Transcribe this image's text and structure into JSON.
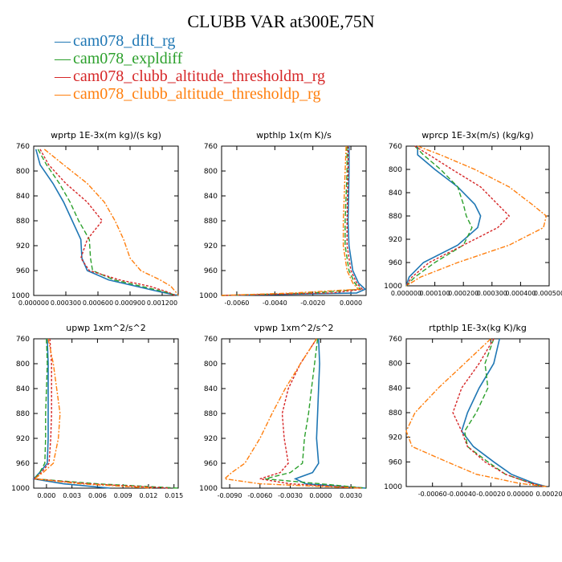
{
  "title": "CLUBB VAR at300E,75N",
  "legend": [
    {
      "name": "cam078_dflt_rg",
      "color": "#1f77b4"
    },
    {
      "name": "cam078_expldiff",
      "color": "#2ca02c"
    },
    {
      "name": "cam078_clubb_altitude_thresholdm_rg",
      "color": "#d62728"
    },
    {
      "name": "cam078_clubb_altitude_thresholdp_rg",
      "color": "#ff7f0e"
    }
  ],
  "chart_data": [
    {
      "type": "line",
      "title": "wprtp  1E-3x(m kg)/(s kg)",
      "xlim": [
        0.0,
        0.00135
      ],
      "ylim": [
        760,
        1000
      ],
      "yticks": [
        760,
        800,
        840,
        880,
        920,
        960,
        1000
      ],
      "xticks": [
        0.0,
        0.0003,
        0.0006,
        0.0009,
        0.0012
      ],
      "xtick_labels": [
        "0.000000",
        "0.000300",
        "0.000600",
        "0.000900",
        "0.001200"
      ],
      "pressure": [
        765,
        790,
        820,
        850,
        880,
        910,
        940,
        960,
        975,
        985,
        995,
        1000
      ],
      "series": [
        {
          "name": "cam078_dflt_rg",
          "values": [
            2e-05,
            6e-05,
            0.00018,
            0.00028,
            0.00036,
            0.00044,
            0.00045,
            0.0005,
            0.0007,
            0.00095,
            0.0012,
            0.00135
          ]
        },
        {
          "name": "cam078_expldiff",
          "values": [
            4e-05,
            0.00012,
            0.00024,
            0.00034,
            0.00042,
            0.00052,
            0.00053,
            0.00055,
            0.00075,
            0.001,
            0.00124,
            0.00133
          ]
        },
        {
          "name": "cam078_clubb_altitude_thresholdm_rg",
          "values": [
            6e-05,
            0.00014,
            0.0003,
            0.0005,
            0.00064,
            0.0005,
            0.00044,
            0.00052,
            0.0008,
            0.00108,
            0.00126,
            0.00132
          ]
        },
        {
          "name": "cam078_clubb_altitude_thresholdp_rg",
          "values": [
            0.0001,
            0.00028,
            0.0005,
            0.00066,
            0.00076,
            0.00084,
            0.0009,
            0.001,
            0.00118,
            0.00128,
            0.00133,
            0.00135
          ]
        }
      ]
    },
    {
      "type": "line",
      "title": "wpthlp  1x(m K)/s",
      "xlim": [
        -0.0068,
        0.0008
      ],
      "ylim": [
        760,
        1000
      ],
      "yticks": [
        760,
        800,
        840,
        880,
        920,
        960,
        1000
      ],
      "xticks": [
        -0.006,
        -0.004,
        -0.002,
        0.0
      ],
      "xtick_labels": [
        "-0.0060",
        "-0.0040",
        "-0.0020",
        "0.0000"
      ],
      "pressure": [
        760,
        800,
        840,
        880,
        920,
        960,
        980,
        990,
        996,
        1000
      ],
      "series": [
        {
          "name": "cam078_dflt_rg",
          "values": [
            -0.0001,
            -0.0001,
            -0.00012,
            -0.00015,
            -0.0001,
            0.0001,
            0.0004,
            0.00075,
            0.0003,
            -0.0068
          ]
        },
        {
          "name": "cam078_expldiff",
          "values": [
            -0.0002,
            -0.0002,
            -0.00025,
            -0.0003,
            -0.0003,
            -0.0001,
            0.0002,
            0.0005,
            -0.002,
            -0.0068
          ]
        },
        {
          "name": "cam078_clubb_altitude_thresholdm_rg",
          "values": [
            -0.00015,
            -0.00015,
            -0.00018,
            -0.0002,
            -0.0002,
            0.0,
            0.0003,
            0.0006,
            -0.001,
            -0.0068
          ]
        },
        {
          "name": "cam078_clubb_altitude_thresholdp_rg",
          "values": [
            -0.00025,
            -0.0003,
            -0.00035,
            -0.0004,
            -0.0004,
            -0.0002,
            0.0001,
            0.0004,
            -0.003,
            -0.0068
          ]
        }
      ]
    },
    {
      "type": "line",
      "title": "wprcp  1E-3x(m/s) (kg/kg)",
      "xlim": [
        0.0,
        0.0005
      ],
      "ylim": [
        760,
        1000
      ],
      "yticks": [
        760,
        800,
        840,
        880,
        920,
        960,
        1000
      ],
      "xticks": [
        0.0,
        0.0001,
        0.0002,
        0.0003,
        0.0004,
        0.0005
      ],
      "xtick_labels": [
        "0.000000",
        "0.000100",
        "0.000200",
        "0.000300",
        "0.000400",
        "0.000500"
      ],
      "pressure": [
        760,
        775,
        800,
        830,
        860,
        880,
        900,
        930,
        960,
        985,
        1000
      ],
      "series": [
        {
          "name": "cam078_dflt_rg",
          "values": [
            4e-05,
            4e-05,
            0.0001,
            0.00018,
            0.00024,
            0.00026,
            0.00025,
            0.00018,
            6e-05,
            1e-05,
            0.0
          ]
        },
        {
          "name": "cam078_expldiff",
          "values": [
            3e-05,
            6e-05,
            0.00012,
            0.00018,
            0.0002,
            0.00021,
            0.00023,
            0.0002,
            0.0001,
            3e-05,
            0.0
          ]
        },
        {
          "name": "cam078_clubb_altitude_thresholdm_rg",
          "values": [
            3e-05,
            8e-05,
            0.00016,
            0.00026,
            0.00032,
            0.00036,
            0.00032,
            0.0002,
            8e-05,
            2e-05,
            0.0
          ]
        },
        {
          "name": "cam078_clubb_altitude_thresholdp_rg",
          "values": [
            4e-05,
            0.00012,
            0.00024,
            0.00036,
            0.00044,
            0.00049,
            0.00048,
            0.00036,
            0.00018,
            5e-05,
            0.0
          ]
        }
      ]
    },
    {
      "type": "line",
      "title": "upwp  1xm^2/s^2",
      "xlim": [
        -0.0015,
        0.0155
      ],
      "ylim": [
        760,
        1000
      ],
      "yticks": [
        760,
        800,
        840,
        880,
        920,
        960,
        1000
      ],
      "xticks": [
        0.0,
        0.003,
        0.006,
        0.009,
        0.012,
        0.015
      ],
      "xtick_labels": [
        "0.000",
        "0.003",
        "0.006",
        "0.009",
        "0.012",
        "0.015"
      ],
      "pressure": [
        760,
        800,
        840,
        880,
        920,
        960,
        975,
        985,
        993,
        1000
      ],
      "series": [
        {
          "name": "cam078_dflt_rg",
          "values": [
            0.0001,
            0.0002,
            0.0002,
            0.0002,
            0.0002,
            0.0001,
            -0.0008,
            -0.0015,
            0.002,
            0.0075
          ]
        },
        {
          "name": "cam078_expldiff",
          "values": [
            0.0,
            0.0001,
            0.0,
            -0.0001,
            -0.0001,
            -0.0002,
            -0.0008,
            -0.0014,
            0.006,
            0.0155
          ]
        },
        {
          "name": "cam078_clubb_altitude_thresholdm_rg",
          "values": [
            0.0004,
            0.0006,
            0.0006,
            0.0006,
            0.0005,
            0.0003,
            -0.0006,
            -0.0014,
            0.005,
            0.0145
          ]
        },
        {
          "name": "cam078_clubb_altitude_thresholdp_rg",
          "values": [
            0.0002,
            0.0008,
            0.0012,
            0.0016,
            0.0014,
            0.0008,
            -0.0004,
            -0.0014,
            0.004,
            0.0125
          ]
        }
      ]
    },
    {
      "type": "line",
      "title": "vpwp  1xm^2/s^2",
      "xlim": [
        -0.0098,
        0.0045
      ],
      "ylim": [
        760,
        1000
      ],
      "yticks": [
        760,
        800,
        840,
        880,
        920,
        960,
        1000
      ],
      "xticks": [
        -0.009,
        -0.006,
        -0.003,
        0.0,
        0.003
      ],
      "xtick_labels": [
        "-0.0090",
        "-0.0060",
        "-0.0030",
        "0.0000",
        "0.0030"
      ],
      "pressure": [
        760,
        800,
        840,
        880,
        920,
        960,
        975,
        985,
        993,
        1000
      ],
      "series": [
        {
          "name": "cam078_dflt_rg",
          "values": [
            -0.0002,
            -0.0001,
            -0.0002,
            -0.0003,
            -0.0004,
            -0.0002,
            -0.0008,
            -0.0025,
            -0.0015,
            0.0045
          ]
        },
        {
          "name": "cam078_expldiff",
          "values": [
            -0.0003,
            -0.0006,
            -0.0009,
            -0.0012,
            -0.0016,
            -0.0018,
            -0.003,
            -0.0055,
            0.0,
            0.0045
          ]
        },
        {
          "name": "cam078_clubb_altitude_thresholdm_rg",
          "values": [
            -0.0004,
            -0.002,
            -0.0032,
            -0.0038,
            -0.0036,
            -0.0032,
            -0.004,
            -0.006,
            -0.003,
            0.004
          ]
        },
        {
          "name": "cam078_clubb_altitude_thresholdp_rg",
          "values": [
            -0.0004,
            -0.002,
            -0.0035,
            -0.0048,
            -0.006,
            -0.0075,
            -0.0088,
            -0.0095,
            -0.006,
            0.004
          ]
        }
      ]
    },
    {
      "type": "line",
      "title": "rtpthlp  1E-3x(kg K)/kg",
      "xlim": [
        -0.00078,
        0.0002
      ],
      "ylim": [
        760,
        1000
      ],
      "yticks": [
        760,
        800,
        840,
        880,
        920,
        960,
        1000
      ],
      "xticks": [
        -0.0006,
        -0.0004,
        -0.0002,
        0.0,
        0.0002
      ],
      "xtick_labels": [
        "-0.00060",
        "-0.00040",
        "-0.00020",
        "0.00000",
        "0.00020"
      ],
      "pressure": [
        760,
        800,
        840,
        880,
        910,
        935,
        960,
        980,
        995,
        1000
      ],
      "series": [
        {
          "name": "cam078_dflt_rg",
          "values": [
            -0.00014,
            -0.00018,
            -0.00028,
            -0.00036,
            -0.0004,
            -0.00032,
            -0.00018,
            -6e-05,
            0.0001,
            0.00018
          ]
        },
        {
          "name": "cam078_expldiff",
          "values": [
            -0.00018,
            -0.00024,
            -0.00022,
            -0.0003,
            -0.00038,
            -0.00036,
            -0.00022,
            -0.0001,
            8e-05,
            0.00016
          ]
        },
        {
          "name": "cam078_clubb_altitude_thresholdm_rg",
          "values": [
            -0.00018,
            -0.00028,
            -0.0004,
            -0.00046,
            -0.0004,
            -0.00036,
            -0.00024,
            -0.0001,
            8e-05,
            0.00016
          ]
        },
        {
          "name": "cam078_clubb_altitude_thresholdp_rg",
          "values": [
            -0.0002,
            -0.00038,
            -0.00056,
            -0.00072,
            -0.00078,
            -0.00074,
            -0.0005,
            -0.0003,
            0.0,
            0.00018
          ]
        }
      ]
    }
  ]
}
